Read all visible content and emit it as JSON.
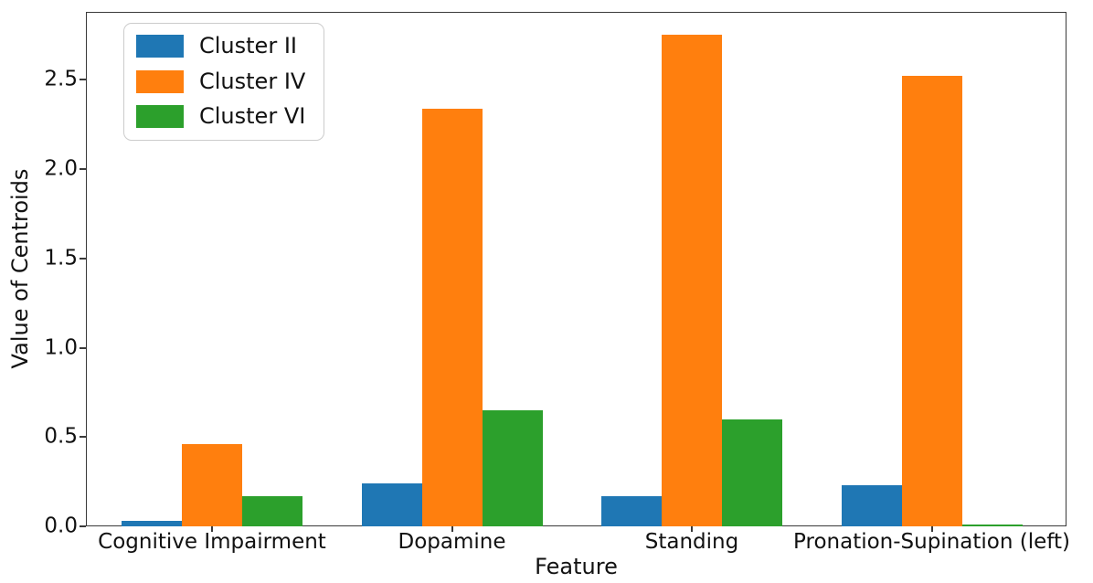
{
  "chart_data": {
    "type": "bar",
    "title": "",
    "xlabel": "Feature",
    "ylabel": "Value of Centroids",
    "categories": [
      "Cognitive Impairment",
      "Dopamine",
      "Standing",
      "Pronation-Supination (left)"
    ],
    "series": [
      {
        "name": "Cluster II",
        "color": "#1f77b4",
        "values": [
          0.03,
          0.24,
          0.17,
          0.23
        ]
      },
      {
        "name": "Cluster IV",
        "color": "#ff7f0e",
        "values": [
          0.46,
          2.34,
          2.75,
          2.52
        ]
      },
      {
        "name": "Cluster VI",
        "color": "#2ca02c",
        "values": [
          0.17,
          0.65,
          0.6,
          0.01
        ]
      }
    ],
    "yticks": [
      0.0,
      0.5,
      1.0,
      1.5,
      2.0,
      2.5
    ],
    "ylim": [
      0,
      2.88
    ],
    "grid": false,
    "legend_position": "upper-left"
  }
}
